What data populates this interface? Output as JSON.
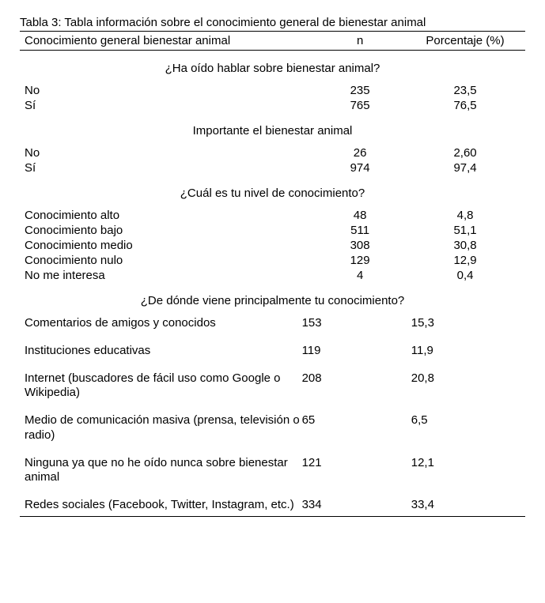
{
  "title": "Tabla 3: Tabla información sobre el conocimiento general de bienestar animal",
  "header": {
    "label": "Conocimiento general bienestar animal",
    "n": "n",
    "pct": "Porcentaje (%)"
  },
  "sections": [
    {
      "heading": "¿Ha oído hablar sobre bienestar animal?",
      "mode": "center",
      "rows": [
        {
          "label": "No",
          "n": "235",
          "pct": "23,5"
        },
        {
          "label": "Sí",
          "n": "765",
          "pct": "76,5"
        }
      ]
    },
    {
      "heading": "Importante el bienestar animal",
      "mode": "center",
      "rows": [
        {
          "label": "No",
          "n": "26",
          "pct": "2,60"
        },
        {
          "label": "Sí",
          "n": "974",
          "pct": "97,4"
        }
      ]
    },
    {
      "heading": "¿Cuál es tu nivel de conocimiento?",
      "mode": "center",
      "rows": [
        {
          "label": "Conocimiento alto",
          "n": "48",
          "pct": "4,8"
        },
        {
          "label": "Conocimiento bajo",
          "n": "511",
          "pct": "51,1"
        },
        {
          "label": "Conocimiento medio",
          "n": "308",
          "pct": "30,8"
        },
        {
          "label": "Conocimiento nulo",
          "n": "129",
          "pct": "12,9"
        },
        {
          "label": "No me interesa",
          "n": "4",
          "pct": "0,4"
        }
      ]
    },
    {
      "heading": "¿De dónde viene principalmente tu conocimiento?",
      "mode": "left",
      "rows": [
        {
          "label": "Comentarios de amigos y conocidos",
          "n": "153",
          "pct": "15,3"
        },
        {
          "label": "Instituciones educativas",
          "n": "119",
          "pct": "11,9"
        },
        {
          "label": "Internet (buscadores de fácil uso como Google o Wikipedia)",
          "n": "208",
          "pct": "20,8"
        },
        {
          "label": "Medio de comunicación masiva (prensa, televisión o radio)",
          "n": "65",
          "pct": "6,5"
        },
        {
          "label": "Ninguna ya que no he oído nunca sobre bienestar animal",
          "n": "121",
          "pct": "12,1"
        },
        {
          "label": "Redes sociales (Facebook, Twitter, Instagram, etc.)",
          "n": "334",
          "pct": "33,4"
        }
      ]
    }
  ]
}
